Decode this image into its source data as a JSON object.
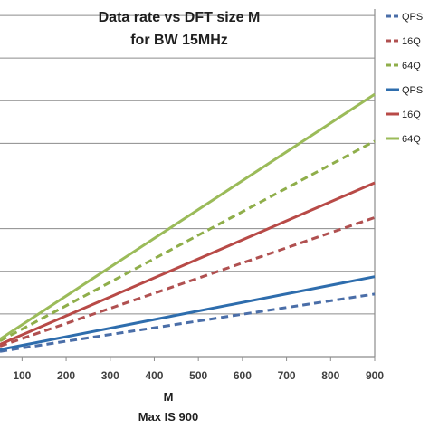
{
  "chart_data": {
    "type": "line",
    "title": [
      "Data rate vs DFT size M",
      "for BW 15MHz"
    ],
    "xlabel": "M",
    "xlabel_sub": "Max IS 900",
    "xlim": [
      50,
      900
    ],
    "ylim": [
      0,
      100
    ],
    "x_ticks": [
      100,
      200,
      300,
      400,
      500,
      600,
      700,
      800,
      900
    ],
    "y_gridlines": 8,
    "y_tick_labels_visible": false,
    "legend_position": "right",
    "series": [
      {
        "name": "QPS",
        "color": "#4a6ea8",
        "dash": true,
        "x": [
          50,
          900
        ],
        "y": [
          1.5,
          18.0
        ]
      },
      {
        "name": "16Q",
        "color": "#b05050",
        "dash": true,
        "x": [
          50,
          900
        ],
        "y": [
          3.0,
          40.0
        ]
      },
      {
        "name": "64Q",
        "color": "#8fae4a",
        "dash": true,
        "x": [
          50,
          900
        ],
        "y": [
          4.5,
          62.0
        ]
      },
      {
        "name": "QPS",
        "color": "#2e6dad",
        "dash": false,
        "x": [
          50,
          900
        ],
        "y": [
          2.0,
          23.0
        ]
      },
      {
        "name": "16Q",
        "color": "#b84a47",
        "dash": false,
        "x": [
          50,
          900
        ],
        "y": [
          3.5,
          50.0
        ]
      },
      {
        "name": "64Q",
        "color": "#9bbb59",
        "dash": false,
        "x": [
          50,
          900
        ],
        "y": [
          5.0,
          75.5
        ]
      }
    ]
  }
}
